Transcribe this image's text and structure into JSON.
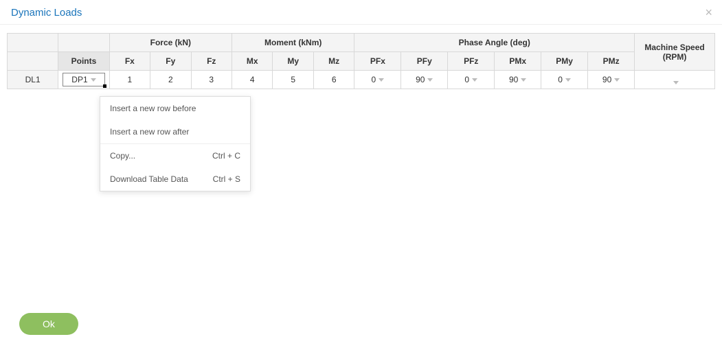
{
  "dialog": {
    "title": "Dynamic Loads",
    "ok_label": "Ok"
  },
  "table": {
    "group_headers": {
      "force": "Force (kN)",
      "moment": "Moment (kNm)",
      "phase": "Phase Angle (deg)"
    },
    "columns": {
      "points": "Points",
      "fx": "Fx",
      "fy": "Fy",
      "fz": "Fz",
      "mx": "Mx",
      "my": "My",
      "mz": "Mz",
      "pfx": "PFx",
      "pfy": "PFy",
      "pfz": "PFz",
      "pmx": "PMx",
      "pmy": "PMy",
      "pmz": "PMz",
      "rpm": "Machine Speed (RPM)"
    },
    "rows": [
      {
        "label": "DL1",
        "point": "DP1",
        "fx": "1",
        "fy": "2",
        "fz": "3",
        "mx": "4",
        "my": "5",
        "mz": "6",
        "pfx": "0",
        "pfy": "90",
        "pfz": "0",
        "pmx": "90",
        "pmy": "0",
        "pmz": "90",
        "rpm": ""
      }
    ]
  },
  "context_menu": {
    "insert_before": "Insert a new row before",
    "insert_after": "Insert a new row after",
    "copy": "Copy...",
    "copy_shortcut": "Ctrl + C",
    "download": "Download Table Data",
    "download_shortcut": "Ctrl + S"
  },
  "colors": {
    "accent": "#1b75bb",
    "ok_bg": "#8ebf5f",
    "border": "#d8d8d8",
    "header_bg": "#f4f4f4",
    "points_hdr_bg": "#e6e6e6"
  }
}
